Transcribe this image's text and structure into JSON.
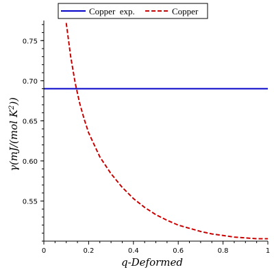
{
  "chart_data": {
    "type": "line",
    "title": "",
    "xlabel": "q-Deformed",
    "ylabel_parts": {
      "main": "γ(mJ/(mol K",
      "exponent": "2",
      "end": "))"
    },
    "xlim": [
      0,
      1
    ],
    "ylim": [
      0.5,
      0.775
    ],
    "x_ticks": [
      0,
      0.2,
      0.4,
      0.6,
      0.8,
      1
    ],
    "x_tick_labels": [
      "0",
      "0.2",
      "0.4",
      "0.6",
      "0.8",
      "1"
    ],
    "y_ticks": [
      0.55,
      0.6,
      0.65,
      0.7,
      0.75
    ],
    "y_tick_labels": [
      "0.55",
      "0.60",
      "0.65",
      "0.70",
      "0.75"
    ],
    "grid": false,
    "legend_position": "top",
    "series": [
      {
        "name": "Copper  exp.",
        "style": "solid",
        "color": "#0000c8",
        "x": [
          0,
          1
        ],
        "y": [
          0.69,
          0.69
        ]
      },
      {
        "name": "Copper",
        "style": "dashed",
        "color": "#c80000",
        "x": [
          0.1,
          0.12,
          0.14,
          0.16,
          0.18,
          0.2,
          0.25,
          0.3,
          0.35,
          0.4,
          0.45,
          0.5,
          0.55,
          0.6,
          0.65,
          0.7,
          0.75,
          0.8,
          0.85,
          0.9,
          0.95,
          1.0
        ],
        "y": [
          0.772,
          0.73,
          0.697,
          0.672,
          0.652,
          0.635,
          0.605,
          0.584,
          0.567,
          0.553,
          0.542,
          0.533,
          0.526,
          0.52,
          0.516,
          0.512,
          0.509,
          0.507,
          0.505,
          0.504,
          0.503,
          0.503
        ]
      }
    ]
  }
}
